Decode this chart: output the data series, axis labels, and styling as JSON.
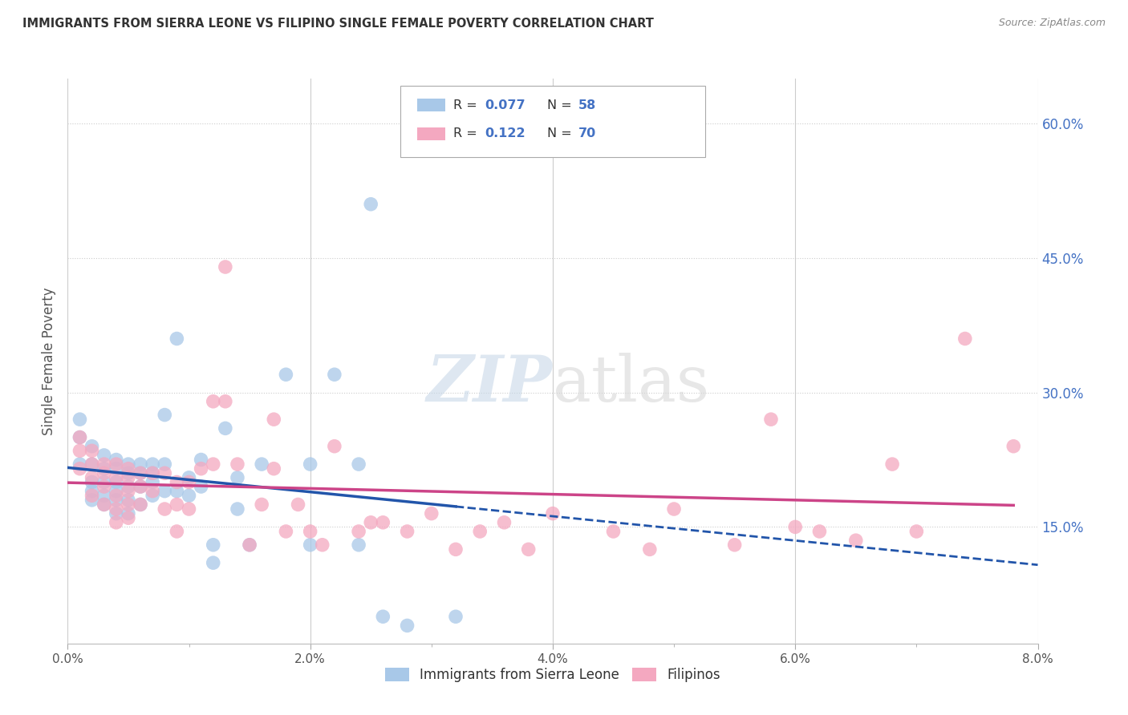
{
  "title": "IMMIGRANTS FROM SIERRA LEONE VS FILIPINO SINGLE FEMALE POVERTY CORRELATION CHART",
  "source": "Source: ZipAtlas.com",
  "ylabel": "Single Female Poverty",
  "yticks": [
    "15.0%",
    "30.0%",
    "45.0%",
    "60.0%"
  ],
  "ytick_vals": [
    0.15,
    0.3,
    0.45,
    0.6
  ],
  "xticks": [
    0.0,
    0.01,
    0.02,
    0.03,
    0.04,
    0.05,
    0.06,
    0.07,
    0.08
  ],
  "xtick_labels": [
    "0.0%",
    "",
    "2.0%",
    "",
    "4.0%",
    "",
    "6.0%",
    "",
    "8.0%"
  ],
  "xlim": [
    0.0,
    0.08
  ],
  "ylim": [
    0.02,
    0.65
  ],
  "legend_label1": "Immigrants from Sierra Leone",
  "legend_label2": "Filipinos",
  "R1": "0.077",
  "N1": "58",
  "R2": "0.122",
  "N2": "70",
  "color_blue": "#a8c8e8",
  "color_pink": "#f4a8c0",
  "color_line_blue": "#2255aa",
  "color_line_pink": "#cc4488",
  "watermark_zip": "ZIP",
  "watermark_atlas": "atlas",
  "sierra_leone_x": [
    0.001,
    0.001,
    0.001,
    0.002,
    0.002,
    0.002,
    0.002,
    0.002,
    0.003,
    0.003,
    0.003,
    0.003,
    0.003,
    0.004,
    0.004,
    0.004,
    0.004,
    0.004,
    0.004,
    0.005,
    0.005,
    0.005,
    0.005,
    0.005,
    0.006,
    0.006,
    0.006,
    0.006,
    0.007,
    0.007,
    0.007,
    0.007,
    0.008,
    0.008,
    0.008,
    0.009,
    0.009,
    0.01,
    0.01,
    0.011,
    0.011,
    0.012,
    0.012,
    0.013,
    0.014,
    0.014,
    0.015,
    0.016,
    0.018,
    0.02,
    0.02,
    0.022,
    0.024,
    0.024,
    0.025,
    0.026,
    0.028,
    0.032
  ],
  "sierra_leone_y": [
    0.27,
    0.25,
    0.22,
    0.24,
    0.22,
    0.2,
    0.19,
    0.18,
    0.23,
    0.215,
    0.2,
    0.185,
    0.175,
    0.225,
    0.215,
    0.2,
    0.19,
    0.18,
    0.165,
    0.22,
    0.21,
    0.195,
    0.18,
    0.165,
    0.22,
    0.21,
    0.195,
    0.175,
    0.22,
    0.21,
    0.2,
    0.185,
    0.275,
    0.22,
    0.19,
    0.36,
    0.19,
    0.205,
    0.185,
    0.225,
    0.195,
    0.13,
    0.11,
    0.26,
    0.205,
    0.17,
    0.13,
    0.22,
    0.32,
    0.22,
    0.13,
    0.32,
    0.22,
    0.13,
    0.51,
    0.05,
    0.04,
    0.05
  ],
  "filipinos_x": [
    0.001,
    0.001,
    0.001,
    0.002,
    0.002,
    0.002,
    0.002,
    0.003,
    0.003,
    0.003,
    0.003,
    0.004,
    0.004,
    0.004,
    0.004,
    0.004,
    0.005,
    0.005,
    0.005,
    0.005,
    0.005,
    0.006,
    0.006,
    0.006,
    0.007,
    0.007,
    0.008,
    0.008,
    0.009,
    0.009,
    0.009,
    0.01,
    0.01,
    0.011,
    0.012,
    0.012,
    0.013,
    0.013,
    0.014,
    0.015,
    0.016,
    0.017,
    0.017,
    0.018,
    0.019,
    0.02,
    0.021,
    0.022,
    0.024,
    0.025,
    0.026,
    0.028,
    0.03,
    0.032,
    0.034,
    0.036,
    0.038,
    0.04,
    0.045,
    0.048,
    0.05,
    0.055,
    0.058,
    0.06,
    0.062,
    0.065,
    0.068,
    0.07,
    0.074,
    0.078
  ],
  "filipinos_y": [
    0.25,
    0.235,
    0.215,
    0.235,
    0.22,
    0.205,
    0.185,
    0.22,
    0.21,
    0.195,
    0.175,
    0.22,
    0.205,
    0.185,
    0.17,
    0.155,
    0.215,
    0.205,
    0.19,
    0.175,
    0.16,
    0.21,
    0.195,
    0.175,
    0.21,
    0.19,
    0.21,
    0.17,
    0.2,
    0.175,
    0.145,
    0.2,
    0.17,
    0.215,
    0.22,
    0.29,
    0.44,
    0.29,
    0.22,
    0.13,
    0.175,
    0.27,
    0.215,
    0.145,
    0.175,
    0.145,
    0.13,
    0.24,
    0.145,
    0.155,
    0.155,
    0.145,
    0.165,
    0.125,
    0.145,
    0.155,
    0.125,
    0.165,
    0.145,
    0.125,
    0.17,
    0.13,
    0.27,
    0.15,
    0.145,
    0.135,
    0.22,
    0.145,
    0.36,
    0.24
  ]
}
